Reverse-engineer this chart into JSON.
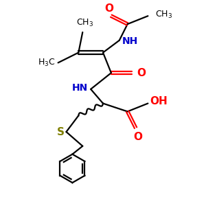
{
  "background_color": "#ffffff",
  "bond_color": "#000000",
  "nitrogen_color": "#0000cc",
  "oxygen_color": "#ff0000",
  "sulfur_color": "#808000",
  "line_width": 1.6,
  "font_size": 10,
  "small_font_size": 9,
  "fig_size": [
    3.0,
    3.0
  ],
  "dpi": 100,
  "xlim": [
    0,
    10
  ],
  "ylim": [
    0,
    10
  ]
}
